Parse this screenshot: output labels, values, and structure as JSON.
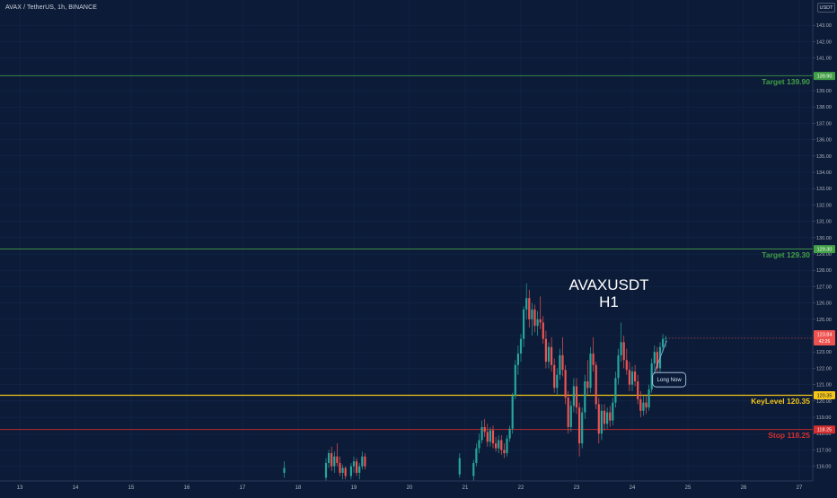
{
  "header": {
    "symbol_line": "AVAX / TetherUS, 1h, BINANCE",
    "currency": "USDT"
  },
  "colors": {
    "background": "#0b1b38",
    "grid": "#15284a",
    "up": "#26a69a",
    "down": "#ef5350",
    "target": "#43a047",
    "keylevel": "#f5c518",
    "stop": "#d32f2f",
    "axis_text": "#b2b5be"
  },
  "chart_data": {
    "type": "candlestick",
    "title": "AVAXUSDT",
    "subtitle": "H1",
    "x_ticks": [
      "13",
      "14",
      "15",
      "16",
      "17",
      "18",
      "19",
      "20",
      "21",
      "22",
      "23",
      "24",
      "25",
      "26",
      "27"
    ],
    "y_ticks": [
      "143.00",
      "142.00",
      "141.00",
      "140.00",
      "139.00",
      "138.00",
      "137.00",
      "136.00",
      "135.00",
      "134.00",
      "133.00",
      "132.00",
      "131.00",
      "130.00",
      "129.00",
      "128.00",
      "127.00",
      "126.00",
      "125.00",
      "124.00",
      "123.00",
      "122.00",
      "121.00",
      "120.00",
      "119.00",
      "118.00",
      "117.00",
      "116.00"
    ],
    "ylim": [
      115.2,
      144.2
    ],
    "xlim": [
      13,
      27
    ],
    "levels": [
      {
        "name": "Target 139.90",
        "tag": "139.90",
        "value": 139.9,
        "color": "#43a047"
      },
      {
        "name": "Target 129.30",
        "tag": "129.30",
        "value": 129.3,
        "color": "#43a047"
      },
      {
        "name": "KeyLevel 120.35",
        "tag": "120.35",
        "value": 120.35,
        "color": "#f5c518"
      },
      {
        "name": "Stop 118.25",
        "tag": "118.25",
        "value": 118.25,
        "color": "#d32f2f"
      }
    ],
    "last_price": {
      "value": 123.84,
      "label": "123.84",
      "countdown": "42:26",
      "color": "#ef5350"
    },
    "annotation": {
      "text": "Long Now",
      "x": 24.85,
      "y": 121.3,
      "anchor_x": 24.62,
      "anchor_y": 123.7
    },
    "series": [
      {
        "x": 17.75,
        "o": 115.6,
        "h": 116.3,
        "l": 115.3,
        "c": 115.9
      },
      {
        "x": 18.5,
        "o": 115.3,
        "h": 116.5,
        "l": 115.0,
        "c": 116.2
      },
      {
        "x": 18.55,
        "o": 116.2,
        "h": 117.0,
        "l": 115.9,
        "c": 116.8
      },
      {
        "x": 18.6,
        "o": 116.8,
        "h": 117.2,
        "l": 115.7,
        "c": 116.0
      },
      {
        "x": 18.65,
        "o": 116.0,
        "h": 116.9,
        "l": 115.6,
        "c": 116.6
      },
      {
        "x": 18.7,
        "o": 116.6,
        "h": 117.4,
        "l": 116.0,
        "c": 116.2
      },
      {
        "x": 18.75,
        "o": 116.2,
        "h": 116.6,
        "l": 115.4,
        "c": 115.6
      },
      {
        "x": 18.8,
        "o": 115.6,
        "h": 116.1,
        "l": 115.2,
        "c": 115.9
      },
      {
        "x": 18.85,
        "o": 115.9,
        "h": 116.0,
        "l": 115.2,
        "c": 115.4
      },
      {
        "x": 18.95,
        "o": 115.4,
        "h": 116.2,
        "l": 115.2,
        "c": 116.0
      },
      {
        "x": 19.0,
        "o": 116.0,
        "h": 116.6,
        "l": 115.6,
        "c": 116.3
      },
      {
        "x": 19.05,
        "o": 116.3,
        "h": 116.5,
        "l": 115.4,
        "c": 115.6
      },
      {
        "x": 19.1,
        "o": 115.6,
        "h": 116.2,
        "l": 115.2,
        "c": 116.0
      },
      {
        "x": 19.15,
        "o": 116.0,
        "h": 116.9,
        "l": 115.8,
        "c": 116.6
      },
      {
        "x": 19.2,
        "o": 116.6,
        "h": 116.8,
        "l": 115.8,
        "c": 116.0
      },
      {
        "x": 20.9,
        "o": 115.5,
        "h": 116.8,
        "l": 115.3,
        "c": 116.5
      },
      {
        "x": 21.15,
        "o": 115.4,
        "h": 116.4,
        "l": 115.1,
        "c": 116.2
      },
      {
        "x": 21.2,
        "o": 116.2,
        "h": 117.4,
        "l": 116.0,
        "c": 117.1
      },
      {
        "x": 21.25,
        "o": 117.1,
        "h": 118.0,
        "l": 116.8,
        "c": 117.6
      },
      {
        "x": 21.3,
        "o": 117.6,
        "h": 118.8,
        "l": 117.4,
        "c": 118.4
      },
      {
        "x": 21.35,
        "o": 118.4,
        "h": 118.9,
        "l": 117.8,
        "c": 118.1
      },
      {
        "x": 21.4,
        "o": 118.1,
        "h": 118.6,
        "l": 117.2,
        "c": 117.5
      },
      {
        "x": 21.45,
        "o": 117.5,
        "h": 118.4,
        "l": 117.2,
        "c": 118.2
      },
      {
        "x": 21.5,
        "o": 118.2,
        "h": 118.5,
        "l": 117.1,
        "c": 117.4
      },
      {
        "x": 21.55,
        "o": 117.4,
        "h": 117.8,
        "l": 116.9,
        "c": 117.1
      },
      {
        "x": 21.6,
        "o": 117.1,
        "h": 117.9,
        "l": 116.8,
        "c": 117.6
      },
      {
        "x": 21.65,
        "o": 117.6,
        "h": 117.9,
        "l": 116.7,
        "c": 117.0
      },
      {
        "x": 21.7,
        "o": 117.0,
        "h": 117.4,
        "l": 116.5,
        "c": 116.8
      },
      {
        "x": 21.75,
        "o": 116.8,
        "h": 117.9,
        "l": 116.6,
        "c": 117.7
      },
      {
        "x": 21.8,
        "o": 117.7,
        "h": 118.5,
        "l": 117.5,
        "c": 118.3
      },
      {
        "x": 21.85,
        "o": 118.3,
        "h": 120.5,
        "l": 118.0,
        "c": 120.3
      },
      {
        "x": 21.9,
        "o": 120.3,
        "h": 122.5,
        "l": 120.1,
        "c": 122.2
      },
      {
        "x": 21.95,
        "o": 122.2,
        "h": 123.4,
        "l": 121.6,
        "c": 122.9
      },
      {
        "x": 22.0,
        "o": 122.9,
        "h": 124.1,
        "l": 122.4,
        "c": 123.8
      },
      {
        "x": 22.05,
        "o": 123.8,
        "h": 125.8,
        "l": 123.3,
        "c": 125.6
      },
      {
        "x": 22.1,
        "o": 125.6,
        "h": 127.2,
        "l": 125.0,
        "c": 126.3
      },
      {
        "x": 22.15,
        "o": 126.3,
        "h": 126.8,
        "l": 124.5,
        "c": 125.0
      },
      {
        "x": 22.2,
        "o": 125.0,
        "h": 126.0,
        "l": 124.0,
        "c": 125.6
      },
      {
        "x": 22.25,
        "o": 125.6,
        "h": 125.9,
        "l": 124.2,
        "c": 124.6
      },
      {
        "x": 22.3,
        "o": 124.6,
        "h": 125.5,
        "l": 124.0,
        "c": 125.0
      },
      {
        "x": 22.35,
        "o": 125.0,
        "h": 126.4,
        "l": 124.4,
        "c": 124.8
      },
      {
        "x": 22.4,
        "o": 124.8,
        "h": 125.2,
        "l": 123.5,
        "c": 123.8
      },
      {
        "x": 22.45,
        "o": 123.8,
        "h": 124.3,
        "l": 122.0,
        "c": 122.4
      },
      {
        "x": 22.5,
        "o": 122.4,
        "h": 123.6,
        "l": 122.0,
        "c": 123.3
      },
      {
        "x": 22.55,
        "o": 123.3,
        "h": 123.9,
        "l": 121.8,
        "c": 122.2
      },
      {
        "x": 22.6,
        "o": 122.2,
        "h": 122.6,
        "l": 120.5,
        "c": 120.8
      },
      {
        "x": 22.65,
        "o": 120.8,
        "h": 122.0,
        "l": 120.4,
        "c": 121.6
      },
      {
        "x": 22.7,
        "o": 121.6,
        "h": 123.2,
        "l": 121.3,
        "c": 122.8
      },
      {
        "x": 22.75,
        "o": 122.8,
        "h": 123.9,
        "l": 121.5,
        "c": 121.9
      },
      {
        "x": 22.8,
        "o": 121.9,
        "h": 122.2,
        "l": 119.8,
        "c": 120.2
      },
      {
        "x": 22.85,
        "o": 120.2,
        "h": 120.6,
        "l": 118.0,
        "c": 118.4
      },
      {
        "x": 22.9,
        "o": 118.4,
        "h": 120.0,
        "l": 118.1,
        "c": 119.7
      },
      {
        "x": 22.95,
        "o": 119.7,
        "h": 121.4,
        "l": 119.3,
        "c": 120.9
      },
      {
        "x": 23.0,
        "o": 120.9,
        "h": 121.4,
        "l": 119.2,
        "c": 119.6
      },
      {
        "x": 23.05,
        "o": 119.6,
        "h": 119.9,
        "l": 116.6,
        "c": 117.4
      },
      {
        "x": 23.1,
        "o": 117.4,
        "h": 119.6,
        "l": 117.1,
        "c": 119.3
      },
      {
        "x": 23.15,
        "o": 119.3,
        "h": 121.6,
        "l": 118.9,
        "c": 121.2
      },
      {
        "x": 23.2,
        "o": 121.2,
        "h": 122.5,
        "l": 120.4,
        "c": 120.8
      },
      {
        "x": 23.25,
        "o": 120.8,
        "h": 123.3,
        "l": 120.5,
        "c": 122.9
      },
      {
        "x": 23.3,
        "o": 122.9,
        "h": 123.9,
        "l": 121.8,
        "c": 122.2
      },
      {
        "x": 23.35,
        "o": 122.2,
        "h": 122.4,
        "l": 119.5,
        "c": 119.8
      },
      {
        "x": 23.4,
        "o": 119.8,
        "h": 120.2,
        "l": 117.4,
        "c": 118.0
      },
      {
        "x": 23.45,
        "o": 118.0,
        "h": 119.8,
        "l": 117.6,
        "c": 119.4
      },
      {
        "x": 23.5,
        "o": 119.4,
        "h": 119.8,
        "l": 118.2,
        "c": 118.6
      },
      {
        "x": 23.55,
        "o": 118.6,
        "h": 119.6,
        "l": 118.3,
        "c": 119.3
      },
      {
        "x": 23.6,
        "o": 119.3,
        "h": 119.7,
        "l": 118.4,
        "c": 118.8
      },
      {
        "x": 23.65,
        "o": 118.8,
        "h": 120.2,
        "l": 118.5,
        "c": 119.9
      },
      {
        "x": 23.7,
        "o": 119.9,
        "h": 121.8,
        "l": 119.6,
        "c": 121.4
      },
      {
        "x": 23.75,
        "o": 121.4,
        "h": 123.2,
        "l": 121.0,
        "c": 122.8
      },
      {
        "x": 23.8,
        "o": 122.8,
        "h": 124.8,
        "l": 122.4,
        "c": 123.6
      },
      {
        "x": 23.85,
        "o": 123.6,
        "h": 124.0,
        "l": 122.0,
        "c": 122.5
      },
      {
        "x": 23.9,
        "o": 122.5,
        "h": 123.2,
        "l": 121.6,
        "c": 121.9
      },
      {
        "x": 23.95,
        "o": 121.9,
        "h": 122.4,
        "l": 120.6,
        "c": 121.0
      },
      {
        "x": 24.0,
        "o": 121.0,
        "h": 122.1,
        "l": 120.6,
        "c": 121.8
      },
      {
        "x": 24.05,
        "o": 121.8,
        "h": 122.2,
        "l": 120.9,
        "c": 121.2
      },
      {
        "x": 24.1,
        "o": 121.2,
        "h": 121.6,
        "l": 119.8,
        "c": 120.1
      },
      {
        "x": 24.15,
        "o": 120.1,
        "h": 120.6,
        "l": 119.0,
        "c": 119.4
      },
      {
        "x": 24.2,
        "o": 119.4,
        "h": 120.3,
        "l": 119.1,
        "c": 119.9
      },
      {
        "x": 24.25,
        "o": 119.9,
        "h": 120.4,
        "l": 119.2,
        "c": 119.6
      },
      {
        "x": 24.3,
        "o": 119.6,
        "h": 121.0,
        "l": 119.4,
        "c": 120.7
      },
      {
        "x": 24.35,
        "o": 120.7,
        "h": 122.6,
        "l": 120.5,
        "c": 122.3
      },
      {
        "x": 24.4,
        "o": 122.3,
        "h": 123.4,
        "l": 121.9,
        "c": 123.0
      },
      {
        "x": 24.45,
        "o": 123.0,
        "h": 123.3,
        "l": 121.6,
        "c": 122.0
      },
      {
        "x": 24.5,
        "o": 122.0,
        "h": 123.6,
        "l": 121.7,
        "c": 123.3
      },
      {
        "x": 24.55,
        "o": 123.3,
        "h": 124.1,
        "l": 123.0,
        "c": 123.8
      },
      {
        "x": 24.6,
        "o": 123.8,
        "h": 124.0,
        "l": 123.3,
        "c": 123.84
      }
    ]
  }
}
